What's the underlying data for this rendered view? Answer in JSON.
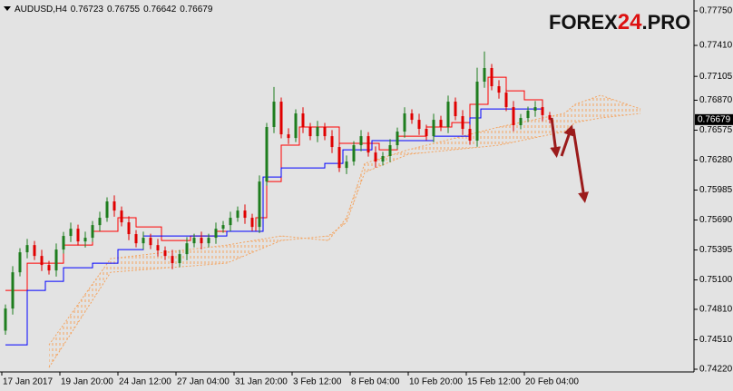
{
  "chart_data": {
    "type": "candlestick",
    "title": "AUDUSD,H4",
    "header_values": [
      0.76723,
      0.76755,
      0.76642,
      0.76679
    ],
    "logo": [
      "FOREX",
      "24",
      ".PRO"
    ],
    "last_price": 0.76679,
    "up_color": "#1e7d1e",
    "down_color": "#e00000",
    "xlim": [
      0,
      190
    ],
    "ylim": [
      0.7422,
      0.7775
    ],
    "yticks": [
      {
        "value": 0.7775,
        "label": "0.77750"
      },
      {
        "value": 0.7741,
        "label": "0.77410"
      },
      {
        "value": 0.77105,
        "label": "0.77105"
      },
      {
        "value": 0.7687,
        "label": "0.76870"
      },
      {
        "value": 0.76575,
        "label": "0.76575"
      },
      {
        "value": 0.7628,
        "label": "0.76280"
      },
      {
        "value": 0.75985,
        "label": "0.75985"
      },
      {
        "value": 0.7569,
        "label": "0.75690"
      },
      {
        "value": 0.75395,
        "label": "0.75395"
      },
      {
        "value": 0.751,
        "label": "0.75100"
      },
      {
        "value": 0.7481,
        "label": "0.74810"
      },
      {
        "value": 0.7451,
        "label": "0.74510"
      },
      {
        "value": 0.7422,
        "label": "0.74220"
      }
    ],
    "xticks": [
      {
        "value": 0,
        "label": "17 Jan 2017"
      },
      {
        "value": 16,
        "label": "19 Jan 20:00"
      },
      {
        "value": 32,
        "label": "24 Jan 12:00"
      },
      {
        "value": 48,
        "label": "27 Jan 04:00"
      },
      {
        "value": 64,
        "label": "31 Jan 20:00"
      },
      {
        "value": 80,
        "label": "3 Feb 12:00"
      },
      {
        "value": 96,
        "label": "8 Feb 04:00"
      },
      {
        "value": 112,
        "label": "10 Feb 20:00"
      },
      {
        "value": 128,
        "label": "15 Feb 12:00"
      },
      {
        "value": 144,
        "label": "20 Feb 04:00"
      }
    ],
    "candles": {
      "x": [
        1,
        3,
        5,
        7,
        9,
        11,
        13,
        15,
        17,
        19,
        21,
        23,
        25,
        27,
        29,
        31,
        33,
        35,
        37,
        39,
        41,
        43,
        45,
        47,
        49,
        51,
        53,
        55,
        57,
        59,
        61,
        63,
        65,
        67,
        69,
        71,
        73,
        75,
        77,
        79,
        81,
        83,
        85,
        87,
        89,
        91,
        93,
        95,
        97,
        99,
        101,
        103,
        105,
        107,
        109,
        111,
        113,
        115,
        117,
        119,
        121,
        123,
        125,
        127,
        129,
        131,
        133,
        135,
        137,
        139,
        141,
        143,
        145,
        147,
        149,
        151
      ],
      "open": [
        0.746,
        0.74818,
        0.75175,
        0.75372,
        0.75443,
        0.75336,
        0.75247,
        0.75193,
        0.75399,
        0.75533,
        0.75604,
        0.75479,
        0.75515,
        0.7564,
        0.75712,
        0.75873,
        0.75783,
        0.75667,
        0.75551,
        0.75461,
        0.75515,
        0.75443,
        0.7539,
        0.75336,
        0.75265,
        0.75354,
        0.75461,
        0.75515,
        0.75461,
        0.75515,
        0.75604,
        0.7564,
        0.75712,
        0.75783,
        0.75712,
        0.75622,
        0.76069,
        0.76606,
        0.76856,
        0.76534,
        0.76498,
        0.7674,
        0.76606,
        0.76516,
        0.76606,
        0.76516,
        0.76409,
        0.76203,
        0.76266,
        0.76427,
        0.76516,
        0.76355,
        0.76266,
        0.7632,
        0.76427,
        0.76561,
        0.7674,
        0.76677,
        0.76588,
        0.76516,
        0.76677,
        0.76606,
        0.76856,
        0.76713,
        0.76588,
        0.76472,
        0.77053,
        0.77187,
        0.77008,
        0.76945,
        0.76802,
        0.76624,
        0.76695,
        0.76767,
        0.76802,
        0.76723
      ],
      "high": [
        0.74858,
        0.75235,
        0.75412,
        0.75503,
        0.75483,
        0.75396,
        0.75287,
        0.75459,
        0.75573,
        0.75664,
        0.75644,
        0.75575,
        0.7568,
        0.75772,
        0.75913,
        0.75933,
        0.75823,
        0.75727,
        0.75591,
        0.75575,
        0.75555,
        0.75503,
        0.7543,
        0.75396,
        0.75394,
        0.75521,
        0.75555,
        0.75575,
        0.75555,
        0.75664,
        0.7568,
        0.75772,
        0.75823,
        0.75843,
        0.75752,
        0.76129,
        0.76646,
        0.77,
        0.76896,
        0.76594,
        0.7678,
        0.768,
        0.76646,
        0.76666,
        0.76646,
        0.76576,
        0.76449,
        0.76326,
        0.76467,
        0.76576,
        0.76556,
        0.76415,
        0.7636,
        0.76487,
        0.76601,
        0.768,
        0.7678,
        0.76737,
        0.76628,
        0.76737,
        0.76717,
        0.76916,
        0.76896,
        0.76773,
        0.76628,
        0.7719,
        0.7735,
        0.77227,
        0.77068,
        0.76985,
        0.76862,
        0.76735,
        0.76807,
        0.76862,
        0.76862,
        0.76755
      ],
      "low": [
        0.7456,
        0.74758,
        0.75135,
        0.75312,
        0.75296,
        0.75187,
        0.75153,
        0.75133,
        0.75359,
        0.75473,
        0.75439,
        0.75419,
        0.75475,
        0.7558,
        0.75672,
        0.75723,
        0.75627,
        0.75491,
        0.75421,
        0.75401,
        0.75403,
        0.7533,
        0.75296,
        0.75205,
        0.75225,
        0.75294,
        0.75421,
        0.75401,
        0.75421,
        0.75455,
        0.75564,
        0.7558,
        0.75672,
        0.75652,
        0.75582,
        0.75562,
        0.76029,
        0.76546,
        0.76494,
        0.76438,
        0.76458,
        0.76546,
        0.76476,
        0.76456,
        0.76476,
        0.76349,
        0.76163,
        0.76143,
        0.76226,
        0.76367,
        0.76315,
        0.76206,
        0.76226,
        0.7626,
        0.76387,
        0.76501,
        0.76637,
        0.76528,
        0.76476,
        0.76456,
        0.76566,
        0.76546,
        0.76673,
        0.76528,
        0.76432,
        0.76412,
        0.76993,
        0.76968,
        0.76885,
        0.76762,
        0.76564,
        0.76584,
        0.76655,
        0.76707,
        0.76663,
        0.76642
      ],
      "close": [
        0.74818,
        0.75175,
        0.75372,
        0.75443,
        0.75336,
        0.75247,
        0.75193,
        0.75399,
        0.75533,
        0.75604,
        0.75479,
        0.75515,
        0.7564,
        0.75712,
        0.75873,
        0.75783,
        0.75667,
        0.75551,
        0.75461,
        0.75515,
        0.75443,
        0.7539,
        0.75336,
        0.75265,
        0.75354,
        0.75461,
        0.75515,
        0.75461,
        0.75515,
        0.75604,
        0.7564,
        0.75712,
        0.75783,
        0.75712,
        0.75622,
        0.76069,
        0.76606,
        0.76856,
        0.76534,
        0.76498,
        0.7674,
        0.76606,
        0.76516,
        0.76606,
        0.76516,
        0.76409,
        0.76203,
        0.76266,
        0.76427,
        0.76516,
        0.76355,
        0.76266,
        0.7632,
        0.76427,
        0.76561,
        0.7674,
        0.76677,
        0.76588,
        0.76516,
        0.76677,
        0.76606,
        0.76856,
        0.76713,
        0.76588,
        0.76472,
        0.77053,
        0.77187,
        0.77008,
        0.76945,
        0.76802,
        0.76624,
        0.76695,
        0.76767,
        0.76802,
        0.76723,
        0.76679
      ]
    },
    "lines": [
      {
        "color": "#ff0000",
        "x": [
          1,
          7,
          12,
          17,
          25,
          32,
          37,
          44,
          52,
          59,
          70,
          73,
          77,
          82,
          89,
          93,
          99,
          104,
          109,
          117,
          124,
          129,
          134,
          139,
          144,
          149
        ],
        "values": [
          0.74996,
          0.75265,
          0.75265,
          0.75443,
          0.75578,
          0.75712,
          0.75622,
          0.75488,
          0.75533,
          0.75578,
          0.75712,
          0.76069,
          0.76427,
          0.76606,
          0.76606,
          0.76445,
          0.76445,
          0.76382,
          0.76516,
          0.76606,
          0.7665,
          0.76829,
          0.77097,
          0.76963,
          0.76874,
          0.76784
        ]
      },
      {
        "color": "#0000ff",
        "x": [
          1,
          7,
          12,
          17,
          25,
          32,
          39,
          49,
          62,
          71,
          72,
          77,
          84,
          89,
          94,
          102,
          109,
          119,
          129,
          132,
          139,
          149
        ],
        "values": [
          0.7446,
          0.74996,
          0.75086,
          0.7522,
          0.75265,
          0.75399,
          0.75533,
          0.75533,
          0.75578,
          0.75578,
          0.76114,
          0.76203,
          0.76203,
          0.76248,
          0.76382,
          0.76472,
          0.76472,
          0.76516,
          0.76695,
          0.76784,
          0.76784,
          0.76784
        ]
      }
    ],
    "cloud": {
      "color": "#f4a460",
      "x": [
        13,
        30,
        62,
        77,
        90,
        95,
        100,
        112,
        137,
        155,
        158,
        165,
        176
      ],
      "span_a": [
        0.7446,
        0.75309,
        0.75443,
        0.75533,
        0.75488,
        0.75712,
        0.76248,
        0.76382,
        0.76606,
        0.7674,
        0.76829,
        0.76919,
        0.76784
      ],
      "span_b": [
        0.74237,
        0.75175,
        0.75265,
        0.75488,
        0.75533,
        0.75667,
        0.76159,
        0.76337,
        0.76427,
        0.76561,
        0.7665,
        0.76695,
        0.7674
      ]
    }
  }
}
